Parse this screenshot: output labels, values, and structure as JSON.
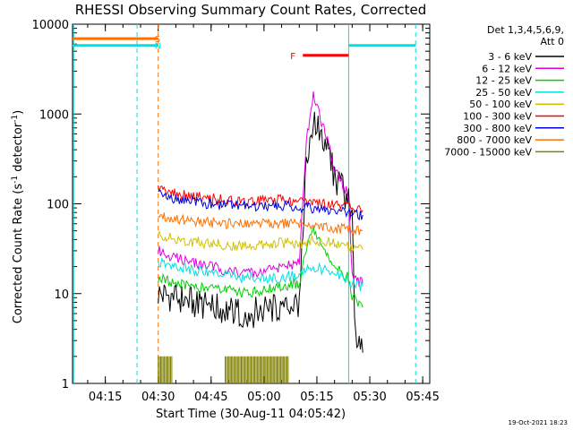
{
  "chart_data": {
    "type": "line",
    "title": "RHESSI Observing Summary Count Rates, Corrected",
    "xlabel": "Start Time (30-Aug-11 04:05:42)",
    "ylabel_main": "Corrected Count Rate (s",
    "ylabel_sup1": "-1",
    "ylabel_mid": " detector",
    "ylabel_sup2": "-1",
    "ylabel_end": ")",
    "yscale": "log",
    "ylim": [
      1,
      10000
    ],
    "xlim_minutes": [
      "04:05:42",
      "05:47:00"
    ],
    "x_ticks": [
      "04:15",
      "04:30",
      "04:45",
      "05:00",
      "05:15",
      "05:30",
      "05:45"
    ],
    "y_ticks": [
      "1",
      "10",
      "100",
      "1000",
      "10000"
    ],
    "legend_header": [
      "Det 1,3,4,5,6,9,",
      "Att 0"
    ],
    "legend_position": "right",
    "timestamp": "19-Oct-2021 18:23",
    "series": [
      {
        "name": "3 - 6 keV",
        "color": "#000000",
        "x": [
          "04:30",
          "04:35",
          "04:40",
          "04:45",
          "04:50",
          "04:55",
          "05:00",
          "05:05",
          "05:10",
          "05:12",
          "05:14",
          "05:16",
          "05:18",
          "05:20",
          "05:22",
          "05:24",
          "05:25",
          "05:26",
          "05:27",
          "05:28"
        ],
        "y": [
          10,
          9,
          8,
          7,
          6.5,
          6,
          6.5,
          7,
          8,
          300,
          850,
          600,
          400,
          200,
          150,
          100,
          60,
          3,
          3,
          2.2
        ]
      },
      {
        "name": "6 - 12 keV",
        "color": "#e000e0",
        "x": [
          "04:30",
          "04:35",
          "04:40",
          "04:45",
          "04:50",
          "04:55",
          "05:00",
          "05:05",
          "05:10",
          "05:12",
          "05:14",
          "05:16",
          "05:18",
          "05:20",
          "05:22",
          "05:24",
          "05:25",
          "05:28"
        ],
        "y": [
          30,
          25,
          22,
          20,
          18,
          17,
          18,
          20,
          22,
          500,
          1600,
          900,
          500,
          250,
          180,
          120,
          15,
          13
        ]
      },
      {
        "name": "12 - 25 keV",
        "color": "#00d000",
        "x": [
          "04:30",
          "04:35",
          "04:40",
          "04:45",
          "04:50",
          "04:55",
          "05:00",
          "05:05",
          "05:10",
          "05:12",
          "05:14",
          "05:16",
          "05:18",
          "05:20",
          "05:22",
          "05:24",
          "05:25",
          "05:28"
        ],
        "y": [
          15,
          13,
          12,
          11,
          11,
          10,
          11,
          12,
          13,
          30,
          55,
          35,
          25,
          20,
          17,
          15,
          9,
          7
        ]
      },
      {
        "name": "25 - 50 keV",
        "color": "#00e0e0",
        "x": [
          "04:30",
          "04:35",
          "04:40",
          "04:45",
          "04:50",
          "04:55",
          "05:00",
          "05:05",
          "05:10",
          "05:14",
          "05:18",
          "05:22",
          "05:25",
          "05:28"
        ],
        "y": [
          22,
          20,
          18,
          17,
          16,
          15,
          15,
          15,
          16,
          20,
          18,
          16,
          13,
          12
        ]
      },
      {
        "name": "50 - 100 keV",
        "color": "#d0c000",
        "x": [
          "04:30",
          "04:35",
          "04:40",
          "04:45",
          "04:50",
          "04:55",
          "05:00",
          "05:05",
          "05:10",
          "05:14",
          "05:18",
          "05:22",
          "05:25",
          "05:28"
        ],
        "y": [
          45,
          40,
          38,
          36,
          35,
          34,
          36,
          37,
          36,
          40,
          38,
          35,
          32,
          31
        ]
      },
      {
        "name": "100 - 300 keV",
        "color": "#ff0000",
        "x": [
          "04:30",
          "04:35",
          "04:40",
          "04:45",
          "04:50",
          "04:55",
          "05:00",
          "05:05",
          "05:10",
          "05:14",
          "05:18",
          "05:22",
          "05:25",
          "05:28"
        ],
        "y": [
          150,
          130,
          120,
          115,
          110,
          105,
          108,
          110,
          105,
          100,
          98,
          95,
          90,
          85
        ]
      },
      {
        "name": "300 - 800 keV",
        "color": "#0000e0",
        "x": [
          "04:30",
          "04:35",
          "04:40",
          "04:45",
          "04:50",
          "04:55",
          "05:00",
          "05:05",
          "05:10",
          "05:14",
          "05:18",
          "05:22",
          "05:25",
          "05:28"
        ],
        "y": [
          130,
          115,
          105,
          100,
          96,
          93,
          95,
          95,
          92,
          88,
          85,
          80,
          78,
          75
        ]
      },
      {
        "name": "800 - 7000 keV",
        "color": "#ff7000",
        "x": [
          "04:30",
          "04:35",
          "04:40",
          "04:45",
          "04:50",
          "04:55",
          "05:00",
          "05:05",
          "05:10",
          "05:14",
          "05:18",
          "05:22",
          "05:25",
          "05:28"
        ],
        "y": [
          75,
          68,
          64,
          62,
          60,
          59,
          60,
          60,
          58,
          56,
          55,
          53,
          51,
          50
        ]
      },
      {
        "name": "7000 - 15000 keV",
        "color": "#808000",
        "x": [
          "04:30",
          "04:33",
          "04:50",
          "05:05"
        ],
        "y": [
          2,
          1.5,
          1.5,
          1.5
        ]
      }
    ],
    "annotations": [
      {
        "label": "S",
        "color": "#ff7000",
        "x_start": "04:05:42",
        "x_end": "04:30",
        "y": 6900
      },
      {
        "label": "N",
        "color": "#00e0e0",
        "x_start": "04:05:42",
        "x_end": "04:30",
        "y": 5800
      },
      {
        "label": "F",
        "color": "#ff0000",
        "x_start": "05:11",
        "x_end": "05:24",
        "y": 4500
      },
      {
        "label": "",
        "color": "#00e0e0",
        "x_start": "05:24",
        "x_end": "05:43",
        "y": 5800
      }
    ],
    "vertical_lines": [
      {
        "x": "04:06",
        "color": "#00e0e0",
        "style": "solid"
      },
      {
        "x": "04:24",
        "color": "#00e0e0",
        "style": "dashed"
      },
      {
        "x": "04:30",
        "color": "#ff7000",
        "style": "dashed"
      },
      {
        "x": "05:24",
        "color": "#00e0e0",
        "style": "solid"
      },
      {
        "x": "05:43",
        "color": "#00e0e0",
        "style": "dashed"
      }
    ]
  }
}
